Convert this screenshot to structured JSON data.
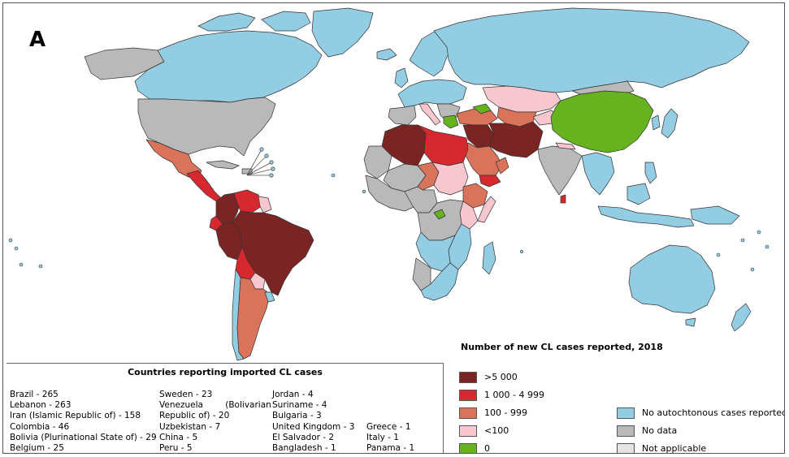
{
  "panel_label": "A",
  "legend": {
    "title": "Number of new CL cases reported, 2018",
    "categories": [
      {
        "label": ">5 000",
        "color": "#7b2424"
      },
      {
        "label": "1 000 - 4 999",
        "color": "#d7282f"
      },
      {
        "label": "100 - 999",
        "color": "#d9735a"
      },
      {
        "label": "<100",
        "color": "#f7c6cf"
      },
      {
        "label": "0",
        "color": "#66b21f"
      },
      {
        "label": "No autochtonous cases reported",
        "color": "#92cde3"
      },
      {
        "label": "No data",
        "color": "#b9b9b9"
      },
      {
        "label": "Not applicable",
        "color": "#e3e3e3"
      }
    ]
  },
  "imported_cases": {
    "title": "Countries reporting imported CL cases",
    "col1": [
      "Brazil - 265",
      "Lebanon - 263",
      "Iran (Islamic Republic of) - 158",
      "Colombia - 46",
      "Bolivia (Plurinational State of) - 29",
      "Belgium - 25"
    ],
    "col2": [
      "Sweden - 23",
      "Venezuela (Bolivarian",
      "Republic of) - 20",
      "Uzbekistan - 7",
      "China - 5",
      "Peru - 5"
    ],
    "col3": [
      "Jordan - 4",
      "Suriname - 4",
      "Bulgaria - 3",
      "United Kingdom - 3",
      "El Salvador - 2",
      "Bangladesh - 1"
    ],
    "col4": [
      "Greece - 1",
      "Italy - 1",
      "Panama - 1"
    ]
  },
  "colors": {
    "water": "#ffffff",
    "border": "#333333"
  }
}
